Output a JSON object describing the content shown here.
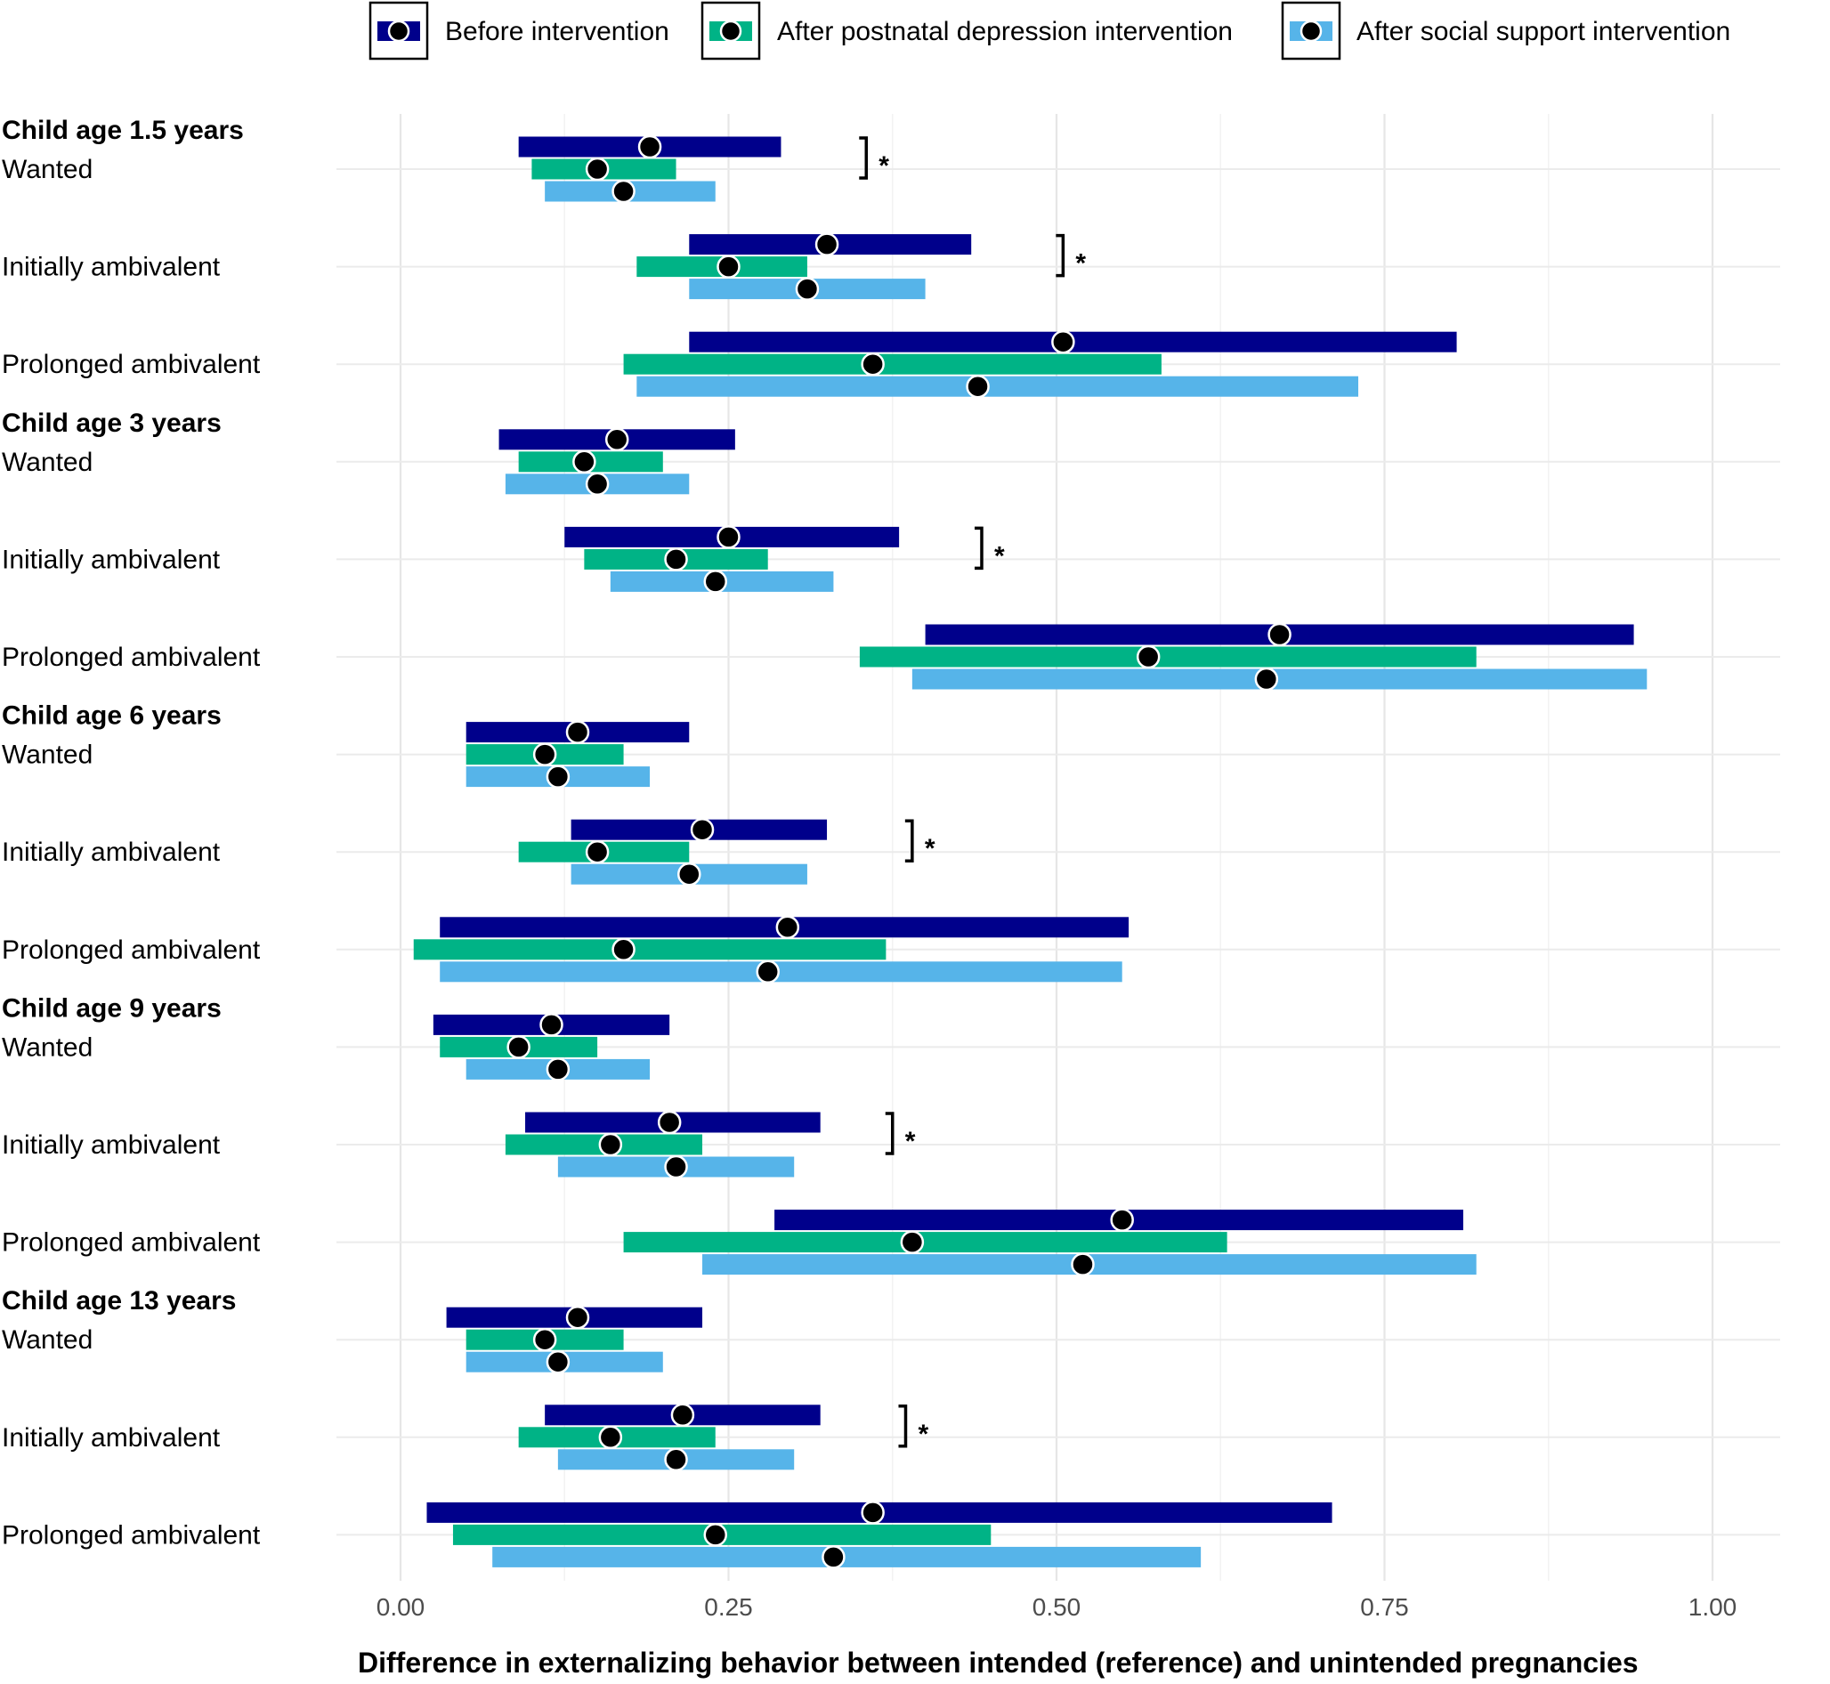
{
  "chart_data": {
    "type": "range-dot",
    "xlabel": "Difference in externalizing behavior between intended (reference) and unintended pregnancies",
    "xlim": [
      -0.08,
      1.05
    ],
    "xticks": [
      0.0,
      0.25,
      0.5,
      0.75,
      1.0
    ],
    "xtick_labels": [
      "0.00",
      "0.25",
      "0.50",
      "0.75",
      "1.00"
    ],
    "grid": true,
    "significance_marker": "*",
    "legend_position": "top",
    "series": [
      {
        "name": "Before intervention",
        "color": "#00008B"
      },
      {
        "name": "After postnatal depression intervention",
        "color": "#00B386"
      },
      {
        "name": "After social support intervention",
        "color": "#56B4E9"
      }
    ],
    "groups": [
      {
        "age_label": "Child age 1.5 years",
        "rows": [
          {
            "label": "Wanted",
            "significant": true,
            "sig_x": 0.355,
            "values": [
              {
                "est": 0.19,
                "lo": 0.09,
                "hi": 0.29
              },
              {
                "est": 0.15,
                "lo": 0.1,
                "hi": 0.21
              },
              {
                "est": 0.17,
                "lo": 0.11,
                "hi": 0.24
              }
            ]
          },
          {
            "label": "Initially ambivalent",
            "significant": true,
            "sig_x": 0.505,
            "values": [
              {
                "est": 0.325,
                "lo": 0.22,
                "hi": 0.435
              },
              {
                "est": 0.25,
                "lo": 0.18,
                "hi": 0.31
              },
              {
                "est": 0.31,
                "lo": 0.22,
                "hi": 0.4
              }
            ]
          },
          {
            "label": "Prolonged ambivalent",
            "significant": false,
            "values": [
              {
                "est": 0.505,
                "lo": 0.22,
                "hi": 0.805
              },
              {
                "est": 0.36,
                "lo": 0.17,
                "hi": 0.58
              },
              {
                "est": 0.44,
                "lo": 0.18,
                "hi": 0.73
              }
            ]
          }
        ]
      },
      {
        "age_label": "Child age 3 years",
        "rows": [
          {
            "label": "Wanted",
            "significant": false,
            "values": [
              {
                "est": 0.165,
                "lo": 0.075,
                "hi": 0.255
              },
              {
                "est": 0.14,
                "lo": 0.09,
                "hi": 0.2
              },
              {
                "est": 0.15,
                "lo": 0.08,
                "hi": 0.22
              }
            ]
          },
          {
            "label": "Initially ambivalent",
            "significant": true,
            "sig_x": 0.443,
            "values": [
              {
                "est": 0.25,
                "lo": 0.125,
                "hi": 0.38
              },
              {
                "est": 0.21,
                "lo": 0.14,
                "hi": 0.28
              },
              {
                "est": 0.24,
                "lo": 0.16,
                "hi": 0.33
              }
            ]
          },
          {
            "label": "Prolonged ambivalent",
            "significant": false,
            "values": [
              {
                "est": 0.67,
                "lo": 0.4,
                "hi": 0.94
              },
              {
                "est": 0.57,
                "lo": 0.35,
                "hi": 0.82
              },
              {
                "est": 0.66,
                "lo": 0.39,
                "hi": 0.95
              }
            ]
          }
        ]
      },
      {
        "age_label": "Child age 6 years",
        "rows": [
          {
            "label": "Wanted",
            "significant": false,
            "values": [
              {
                "est": 0.135,
                "lo": 0.05,
                "hi": 0.22
              },
              {
                "est": 0.11,
                "lo": 0.05,
                "hi": 0.17
              },
              {
                "est": 0.12,
                "lo": 0.05,
                "hi": 0.19
              }
            ]
          },
          {
            "label": "Initially ambivalent",
            "significant": true,
            "sig_x": 0.39,
            "values": [
              {
                "est": 0.23,
                "lo": 0.13,
                "hi": 0.325
              },
              {
                "est": 0.15,
                "lo": 0.09,
                "hi": 0.22
              },
              {
                "est": 0.22,
                "lo": 0.13,
                "hi": 0.31
              }
            ]
          },
          {
            "label": "Prolonged ambivalent",
            "significant": false,
            "values": [
              {
                "est": 0.295,
                "lo": 0.03,
                "hi": 0.555
              },
              {
                "est": 0.17,
                "lo": 0.01,
                "hi": 0.37
              },
              {
                "est": 0.28,
                "lo": 0.03,
                "hi": 0.55
              }
            ]
          }
        ]
      },
      {
        "age_label": "Child age 9 years",
        "rows": [
          {
            "label": "Wanted",
            "significant": false,
            "values": [
              {
                "est": 0.115,
                "lo": 0.025,
                "hi": 0.205
              },
              {
                "est": 0.09,
                "lo": 0.03,
                "hi": 0.15
              },
              {
                "est": 0.12,
                "lo": 0.05,
                "hi": 0.19
              }
            ]
          },
          {
            "label": "Initially ambivalent",
            "significant": true,
            "sig_x": 0.375,
            "values": [
              {
                "est": 0.205,
                "lo": 0.095,
                "hi": 0.32
              },
              {
                "est": 0.16,
                "lo": 0.08,
                "hi": 0.23
              },
              {
                "est": 0.21,
                "lo": 0.12,
                "hi": 0.3
              }
            ]
          },
          {
            "label": "Prolonged ambivalent",
            "significant": false,
            "values": [
              {
                "est": 0.55,
                "lo": 0.285,
                "hi": 0.81
              },
              {
                "est": 0.39,
                "lo": 0.17,
                "hi": 0.63
              },
              {
                "est": 0.52,
                "lo": 0.23,
                "hi": 0.82
              }
            ]
          }
        ]
      },
      {
        "age_label": "Child age 13 years",
        "rows": [
          {
            "label": "Wanted",
            "significant": false,
            "values": [
              {
                "est": 0.135,
                "lo": 0.035,
                "hi": 0.23
              },
              {
                "est": 0.11,
                "lo": 0.05,
                "hi": 0.17
              },
              {
                "est": 0.12,
                "lo": 0.05,
                "hi": 0.2
              }
            ]
          },
          {
            "label": "Initially ambivalent",
            "significant": true,
            "sig_x": 0.385,
            "values": [
              {
                "est": 0.215,
                "lo": 0.11,
                "hi": 0.32
              },
              {
                "est": 0.16,
                "lo": 0.09,
                "hi": 0.24
              },
              {
                "est": 0.21,
                "lo": 0.12,
                "hi": 0.3
              }
            ]
          },
          {
            "label": "Prolonged ambivalent",
            "significant": false,
            "values": [
              {
                "est": 0.36,
                "lo": 0.02,
                "hi": 0.71
              },
              {
                "est": 0.24,
                "lo": 0.04,
                "hi": 0.45
              },
              {
                "est": 0.33,
                "lo": 0.07,
                "hi": 0.61
              }
            ]
          }
        ]
      }
    ]
  }
}
